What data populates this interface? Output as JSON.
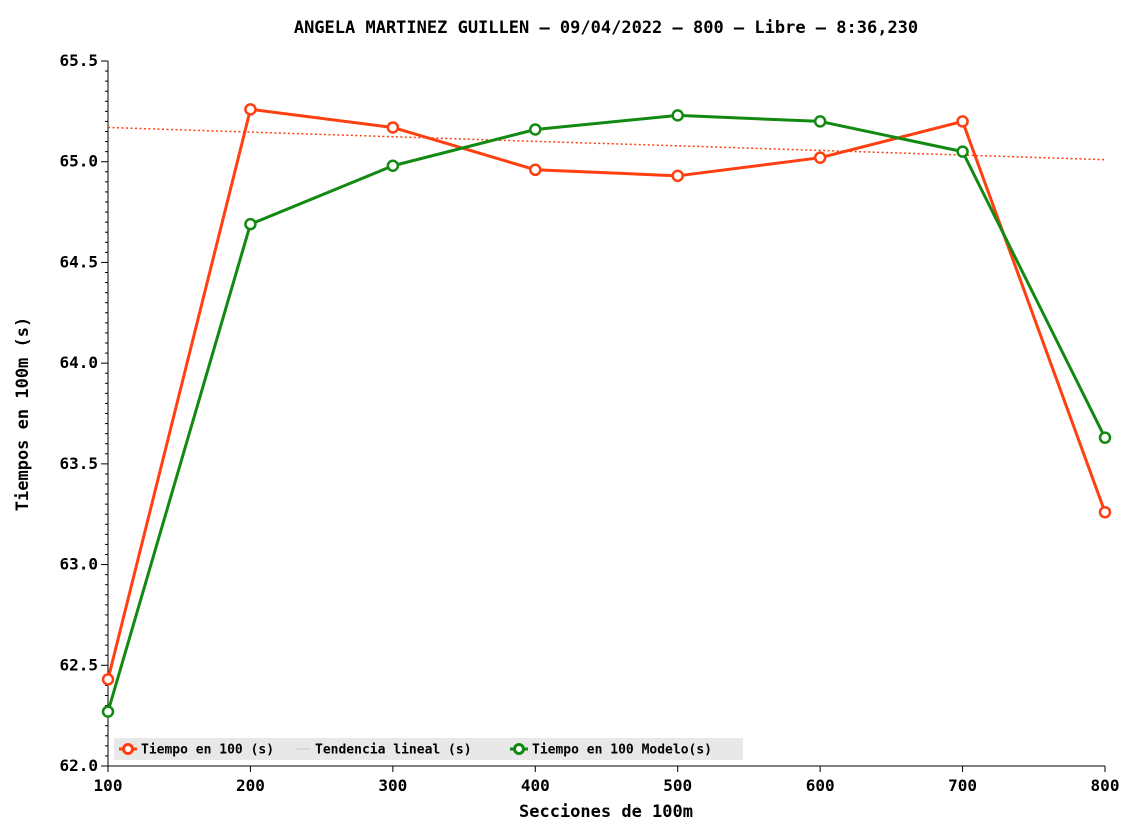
{
  "chart_data": {
    "type": "line",
    "title": "ANGELA MARTINEZ GUILLEN – 09/04/2022 – 800 – Libre – 8:36,230",
    "xlabel": "Secciones de 100m",
    "ylabel": "Tiempos en 100m (s)",
    "x": [
      100,
      200,
      300,
      400,
      500,
      600,
      700,
      800
    ],
    "x_tick_labels": [
      "100",
      "200",
      "300",
      "400",
      "500",
      "600",
      "700",
      "800"
    ],
    "ylim": [
      62.0,
      65.5
    ],
    "y_ticks": [
      62.0,
      62.5,
      63.0,
      63.5,
      64.0,
      64.5,
      65.0,
      65.5
    ],
    "y_tick_labels": [
      "62.0",
      "62.5",
      "63.0",
      "63.5",
      "64.0",
      "64.5",
      "65.0",
      "65.5"
    ],
    "grid": false,
    "legend_position": "bottom-left",
    "series": [
      {
        "name": "Tiempo en 100 (s)",
        "style": "line-markers",
        "color": "#ff3f10",
        "values": [
          62.43,
          65.26,
          65.17,
          64.96,
          64.93,
          65.02,
          65.2,
          63.26
        ]
      },
      {
        "name": "Tendencia lineal (s)",
        "style": "dotted",
        "color": "#ff3f10",
        "legend_color": "#d8d8d8",
        "values": [
          65.17,
          65.147,
          65.124,
          65.101,
          65.079,
          65.056,
          65.033,
          65.01
        ]
      },
      {
        "name": "Tiempo en 100 Modelo(s)",
        "style": "line-markers",
        "color": "#128a12",
        "values": [
          62.27,
          64.69,
          64.98,
          65.16,
          65.23,
          65.2,
          65.05,
          63.63
        ]
      }
    ]
  }
}
